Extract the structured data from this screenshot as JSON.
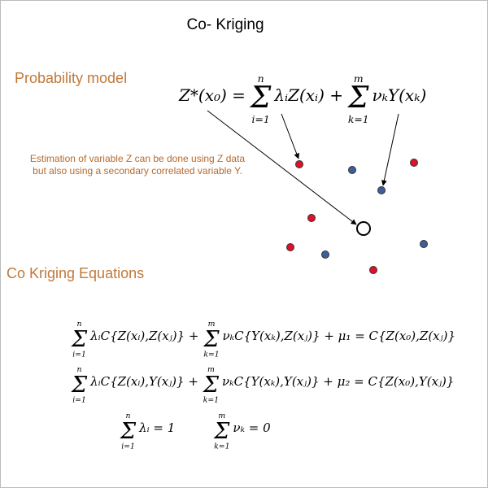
{
  "title": "Co- Kriging",
  "model_heading": "Probability model",
  "model_equation": [
    {
      "t": "Z*(x₀) ="
    },
    {
      "sum": "Σ",
      "upper": "n",
      "lower": "i=1"
    },
    {
      "t": "λᵢZ(xᵢ) +"
    },
    {
      "sum": "Σ",
      "upper": "m",
      "lower": "k=1"
    },
    {
      "t": "νₖY(xₖ)"
    }
  ],
  "note": "Estimation of variable Z can be done using Z data but also using a secondary correlated variable Y.",
  "equations_heading": "Co Kriging Equations",
  "equations": [
    [
      {
        "sum": "Σ",
        "upper": "n",
        "lower": "i=1"
      },
      {
        "t": "λᵢC{Z(xᵢ),Z(xⱼ)} +"
      },
      {
        "sum": "Σ",
        "upper": "m",
        "lower": "k=1"
      },
      {
        "t": "νₖC{Y(xₖ),Z(xⱼ)} + μ₁ = C{Z(x₀),Z(xⱼ)}"
      }
    ],
    [
      {
        "sum": "Σ",
        "upper": "n",
        "lower": "i=1"
      },
      {
        "t": "λᵢC{Z(xᵢ),Y(xⱼ)} +"
      },
      {
        "sum": "Σ",
        "upper": "m",
        "lower": "k=1"
      },
      {
        "t": "νₖC{Y(xₖ),Y(xⱼ)} + μ₂ = C{Z(x₀),Y(xⱼ)}"
      }
    ],
    [
      {
        "sum": "Σ",
        "upper": "n",
        "lower": "i=1"
      },
      {
        "t": "λᵢ = 1"
      },
      {
        "sum": "Σ",
        "upper": "m",
        "lower": "k=1"
      },
      {
        "t": "νₖ = 0"
      }
    ]
  ]
}
